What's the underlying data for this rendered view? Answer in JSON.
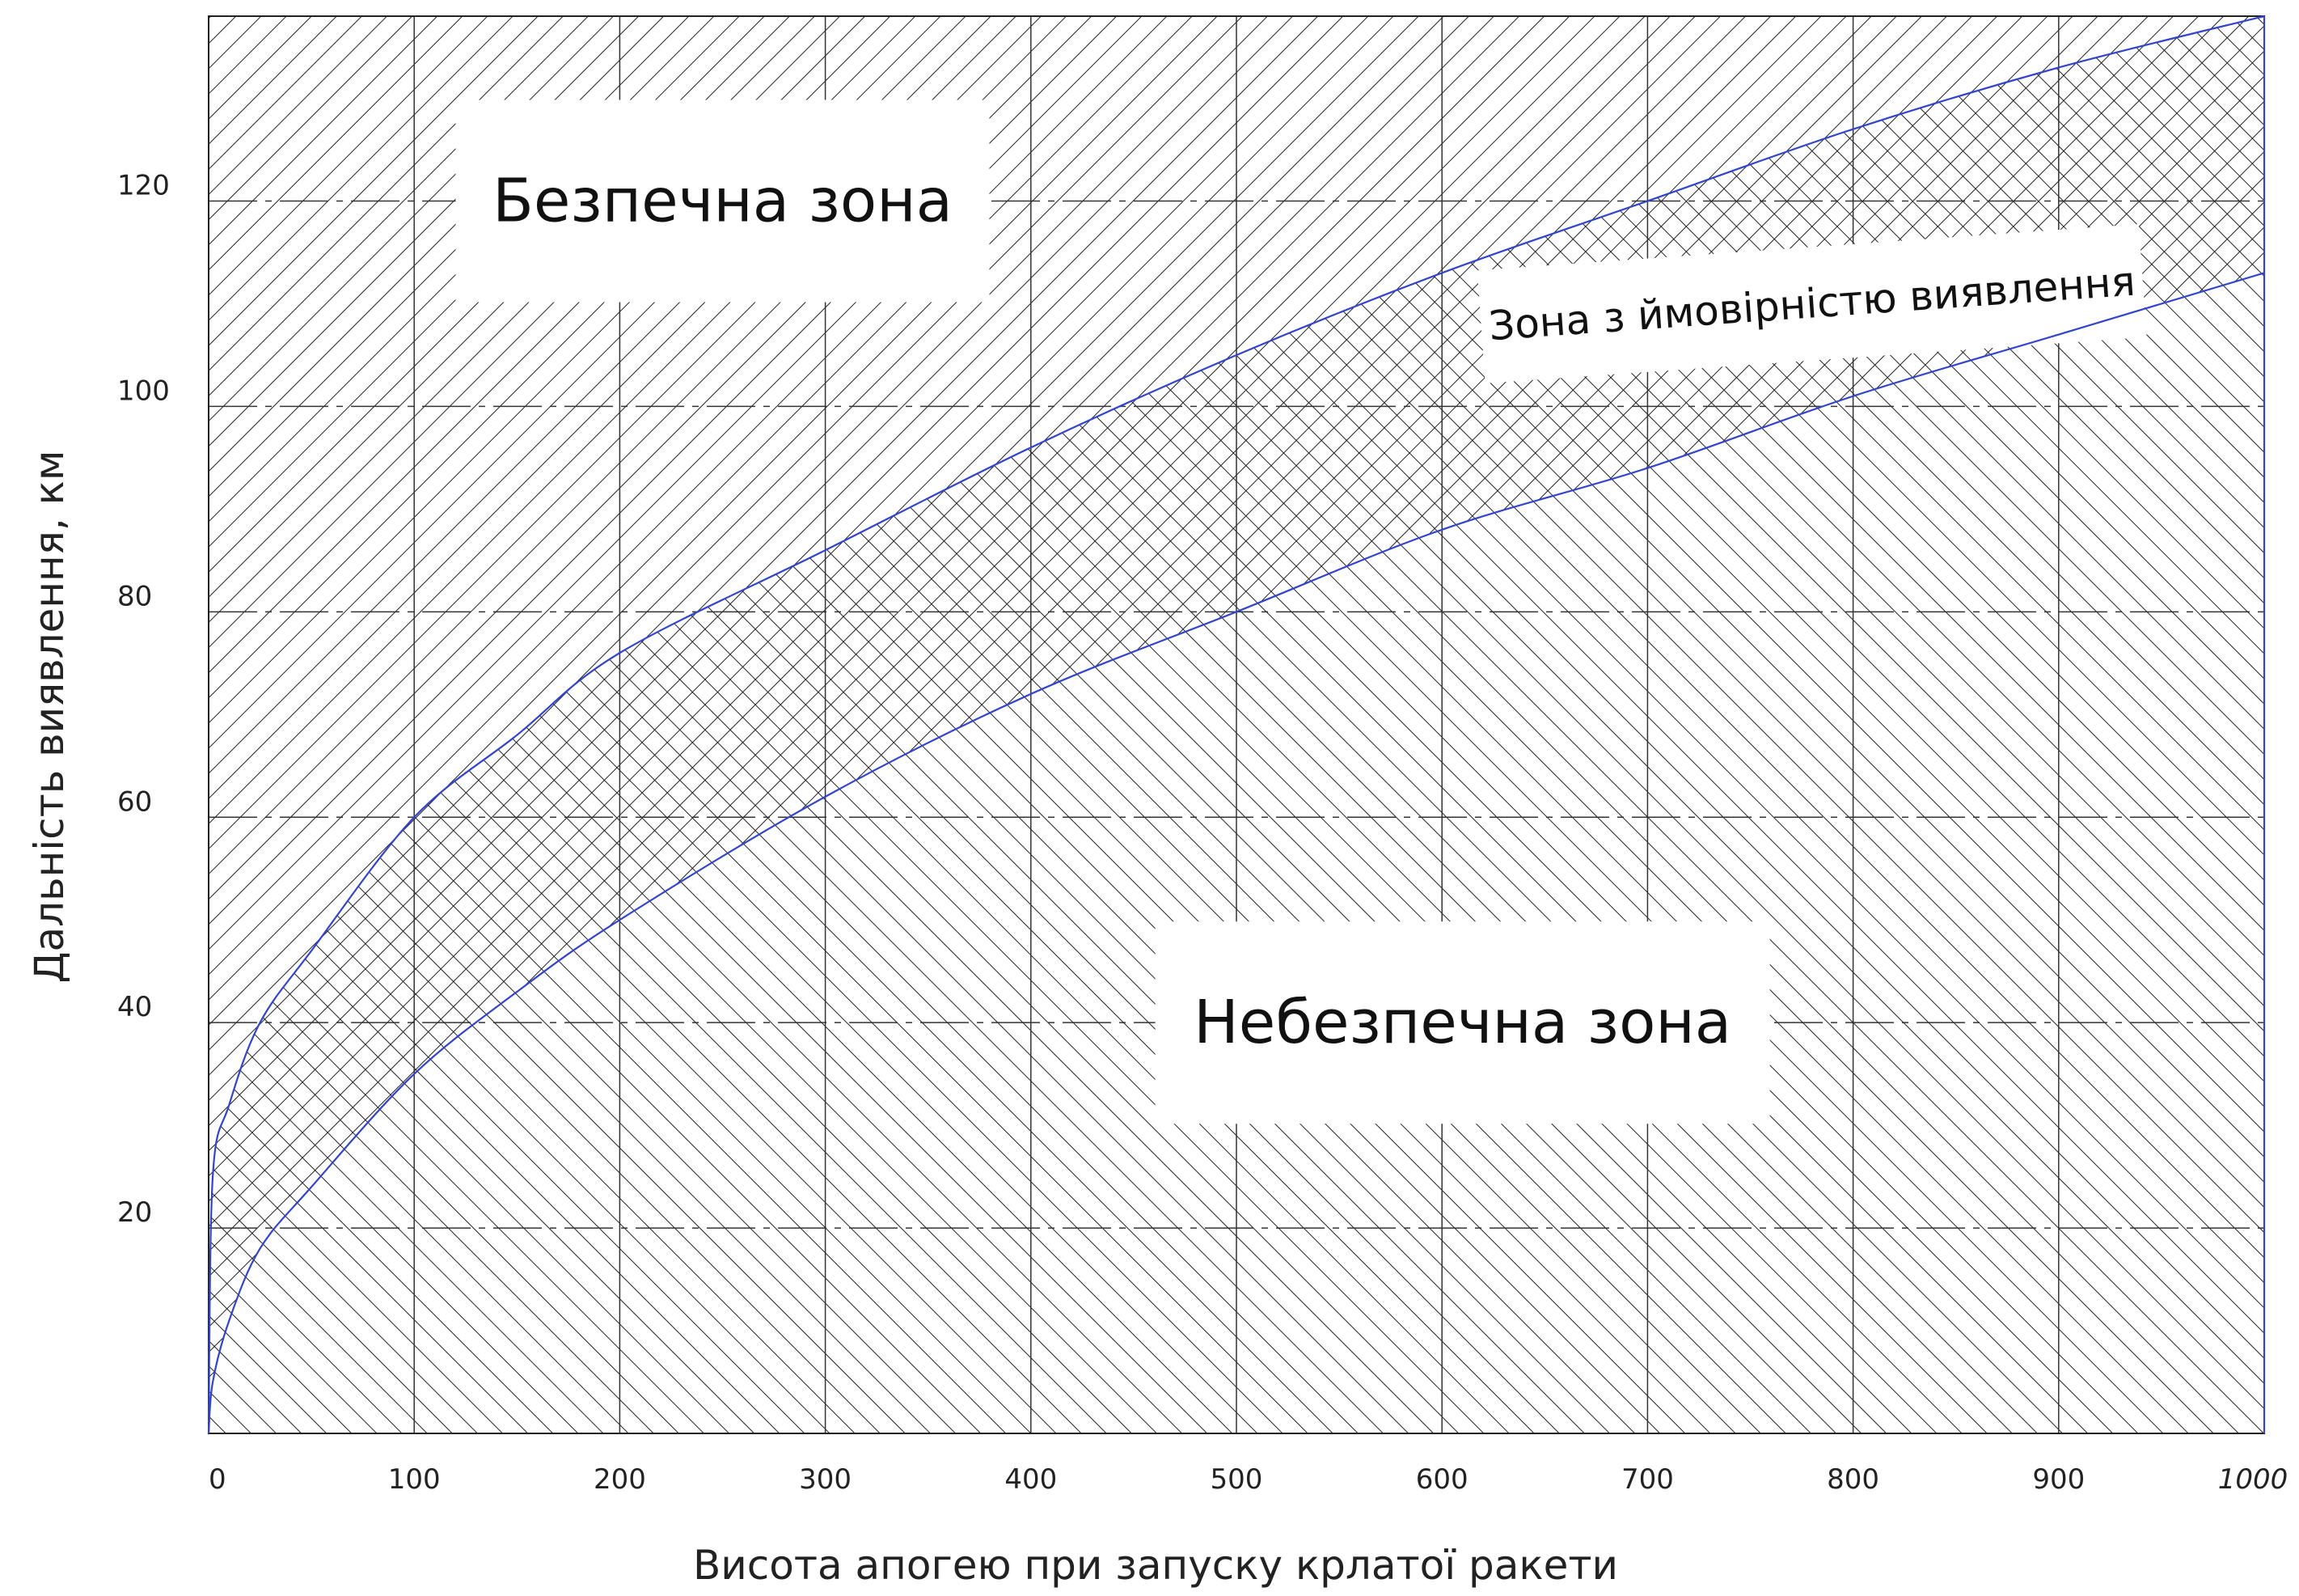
{
  "chart_data": {
    "type": "area",
    "title": "",
    "xlabel": "Висота апогею при запуску крлатої ракети",
    "ylabel": "Дальність виявлення, км",
    "xlim": [
      0,
      1000
    ],
    "ylim": [
      0,
      138
    ],
    "x_ticks": [
      "0",
      "100",
      "200",
      "300",
      "400",
      "500",
      "600",
      "700",
      "800",
      "900",
      "1000"
    ],
    "y_ticks": [
      "20",
      "40",
      "60",
      "80",
      "100",
      "120"
    ],
    "grid": true,
    "series": [
      {
        "role": "upper-boundary",
        "color": "#3344cc",
        "x": [
          0,
          2,
          10,
          25,
          50,
          100,
          150,
          200,
          300,
          400,
          500,
          600,
          700,
          800,
          900,
          1000
        ],
        "y": [
          0,
          25,
          32,
          40,
          47,
          60,
          68,
          76,
          86,
          96,
          105,
          113,
          120,
          127,
          133,
          138
        ]
      },
      {
        "role": "lower-boundary",
        "color": "#3344cc",
        "x": [
          0,
          2,
          10,
          25,
          50,
          100,
          150,
          200,
          300,
          400,
          500,
          600,
          700,
          800,
          900,
          1000
        ],
        "y": [
          0,
          5,
          11,
          18,
          24,
          35,
          43,
          50,
          62,
          72,
          80,
          88,
          94,
          101,
          107,
          113
        ]
      }
    ],
    "annotations": [
      {
        "text": "Безпечна зона",
        "x": 250,
        "y": 120,
        "hatch": "backslash"
      },
      {
        "text": "Зона з ймовірністю виявлення",
        "x": 780,
        "y": 110,
        "hatch": "crosshatch",
        "rotation_deg": -4
      },
      {
        "text": "Небезпечна зона",
        "x": 610,
        "y": 40,
        "hatch": "slash"
      }
    ]
  }
}
